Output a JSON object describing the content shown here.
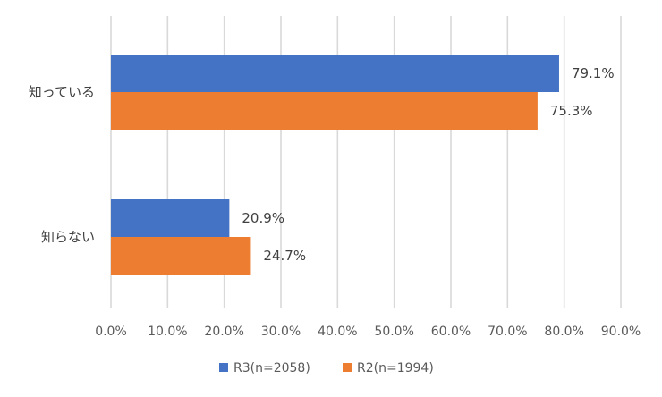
{
  "chart_data": {
    "type": "bar",
    "orientation": "horizontal",
    "categories": [
      "知っている",
      "知らない"
    ],
    "series": [
      {
        "name": "R3(n=2058)",
        "values": [
          79.1,
          20.9
        ],
        "labels": [
          "79.1%",
          "20.9%"
        ],
        "color": "#4472C4"
      },
      {
        "name": "R2(n=1994)",
        "values": [
          75.3,
          24.7
        ],
        "labels": [
          "75.3%",
          "24.7%"
        ],
        "color": "#ED7D31"
      }
    ],
    "xlim": [
      0,
      90
    ],
    "x_ticks": [
      0,
      10,
      20,
      30,
      40,
      50,
      60,
      70,
      80,
      90
    ],
    "x_tick_labels": [
      "0.0%",
      "10.0%",
      "20.0%",
      "30.0%",
      "40.0%",
      "50.0%",
      "60.0%",
      "70.0%",
      "80.0%",
      "90.0%"
    ],
    "grid": "vertical",
    "legend": "bottom"
  }
}
